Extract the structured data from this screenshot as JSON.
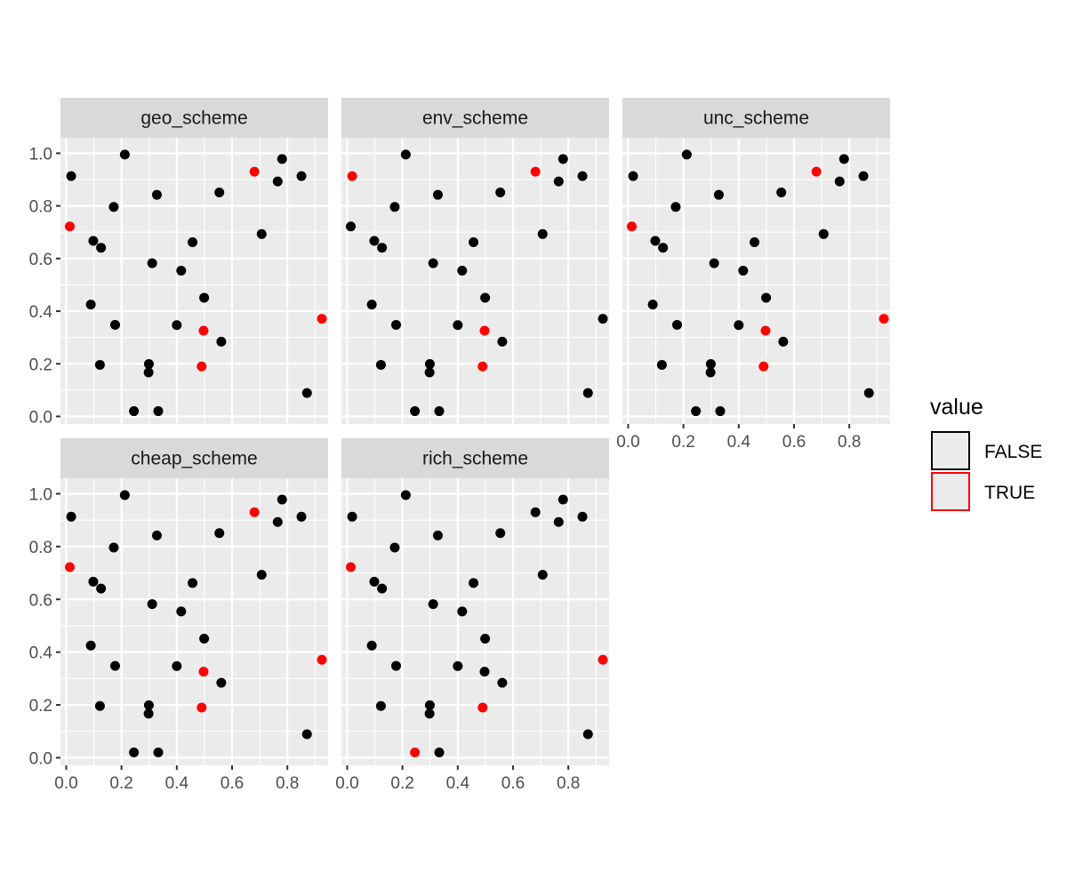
{
  "chart_data": {
    "type": "scatter",
    "facet_layout": "wrap",
    "xlim": [
      -0.0208,
      0.9474
    ],
    "ylim": [
      -0.0288,
      1.0588
    ],
    "x_ticks": [
      "0.0",
      "0.2",
      "0.4",
      "0.6",
      "0.8"
    ],
    "y_ticks": [
      "0.0",
      "0.2",
      "0.4",
      "0.6",
      "0.8",
      "1.0"
    ],
    "grid": true,
    "legend": {
      "title": "value",
      "position": "right",
      "entries": [
        {
          "label": "FALSE",
          "color": "#000000"
        },
        {
          "label": "TRUE",
          "color": "#ff0000"
        }
      ]
    },
    "points": [
      {
        "x": 0.013,
        "y": 0.722
      },
      {
        "x": 0.018,
        "y": 0.913
      },
      {
        "x": 0.089,
        "y": 0.425
      },
      {
        "x": 0.098,
        "y": 0.667
      },
      {
        "x": 0.122,
        "y": 0.196
      },
      {
        "x": 0.126,
        "y": 0.641
      },
      {
        "x": 0.172,
        "y": 0.796
      },
      {
        "x": 0.177,
        "y": 0.348
      },
      {
        "x": 0.212,
        "y": 0.995
      },
      {
        "x": 0.245,
        "y": 0.02
      },
      {
        "x": 0.298,
        "y": 0.167
      },
      {
        "x": 0.299,
        "y": 0.199
      },
      {
        "x": 0.311,
        "y": 0.582
      },
      {
        "x": 0.328,
        "y": 0.842
      },
      {
        "x": 0.333,
        "y": 0.02
      },
      {
        "x": 0.4,
        "y": 0.347
      },
      {
        "x": 0.416,
        "y": 0.554
      },
      {
        "x": 0.457,
        "y": 0.662
      },
      {
        "x": 0.49,
        "y": 0.19
      },
      {
        "x": 0.497,
        "y": 0.326
      },
      {
        "x": 0.499,
        "y": 0.451
      },
      {
        "x": 0.554,
        "y": 0.851
      },
      {
        "x": 0.561,
        "y": 0.284
      },
      {
        "x": 0.681,
        "y": 0.93
      },
      {
        "x": 0.707,
        "y": 0.693
      },
      {
        "x": 0.765,
        "y": 0.893
      },
      {
        "x": 0.781,
        "y": 0.978
      },
      {
        "x": 0.851,
        "y": 0.913
      },
      {
        "x": 0.871,
        "y": 0.089
      },
      {
        "x": 0.925,
        "y": 0.371
      }
    ],
    "panels": [
      {
        "name": "geo_scheme",
        "true_points": [
          0,
          18,
          19,
          23,
          29
        ]
      },
      {
        "name": "env_scheme",
        "true_points": [
          1,
          18,
          19,
          23
        ]
      },
      {
        "name": "unc_scheme",
        "true_points": [
          0,
          18,
          19,
          23,
          29
        ]
      },
      {
        "name": "cheap_scheme",
        "true_points": [
          0,
          18,
          19,
          23,
          29
        ]
      },
      {
        "name": "rich_scheme",
        "true_points": [
          0,
          9,
          18,
          29
        ]
      }
    ]
  }
}
